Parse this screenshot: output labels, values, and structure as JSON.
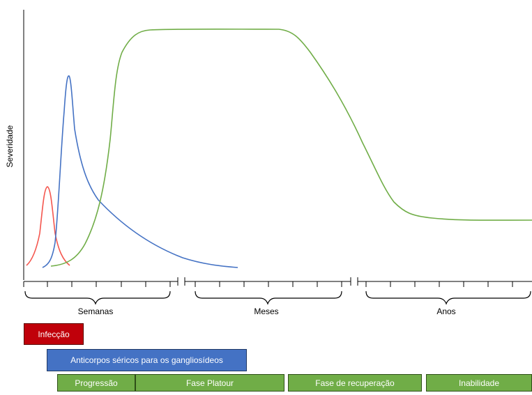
{
  "axis": {
    "y_label": "Severidade"
  },
  "periods": [
    {
      "name": "period-weeks",
      "label": "Semanas"
    },
    {
      "name": "period-months",
      "label": "Meses"
    },
    {
      "name": "period-years",
      "label": "Anos"
    }
  ],
  "bars": {
    "infection": "Infecção",
    "antibodies": "Anticorpos séricos para os gangliosídeos",
    "progression": "Progressão",
    "plateau": "Fase Platour",
    "recovery": "Fase de recuperação",
    "disability": "Inabilidade"
  },
  "colors": {
    "infection": "#c0000a",
    "antibodies": "#4472c4",
    "phases": "#70ad47",
    "curve_infection": "#f4564e",
    "curve_antibodies": "#4472c4",
    "curve_severity": "#70ad47"
  }
}
